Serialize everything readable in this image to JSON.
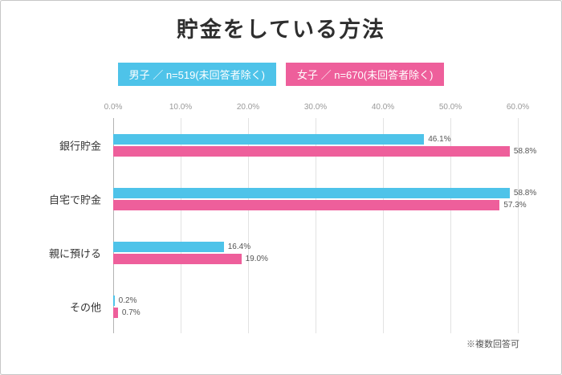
{
  "title": "貯金をしている方法",
  "legend": {
    "male": {
      "label": "男子 ／ n=519(未回答者除く)",
      "color": "#4ec3e9"
    },
    "female": {
      "label": "女子 ／ n=670(未回答者除く)",
      "color": "#ee5f9b"
    }
  },
  "footnote": "※複数回答可",
  "chart_data": {
    "type": "bar",
    "orientation": "horizontal",
    "title": "貯金をしている方法",
    "categories": [
      "銀行貯金",
      "自宅で貯金",
      "親に預ける",
      "その他"
    ],
    "series": [
      {
        "name": "男子 ／ n=519(未回答者除く)",
        "color": "#4ec3e9",
        "values": [
          46.1,
          58.8,
          16.4,
          0.2
        ]
      },
      {
        "name": "女子 ／ n=670(未回答者除く)",
        "color": "#ee5f9b",
        "values": [
          58.8,
          57.3,
          19.0,
          0.7
        ]
      }
    ],
    "x_ticks": [
      "0.0%",
      "10.0%",
      "20.0%",
      "30.0%",
      "40.0%",
      "50.0%",
      "60.0%"
    ],
    "xlim": [
      0,
      60
    ],
    "grid": true,
    "legend_position": "top",
    "note": "※複数回答可"
  }
}
